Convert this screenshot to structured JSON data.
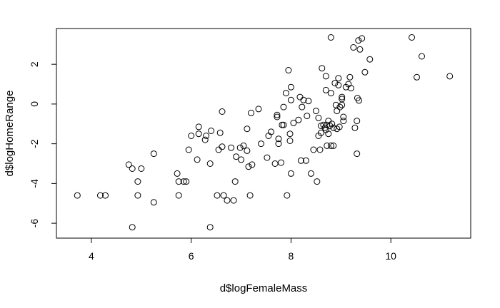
{
  "chart_data": {
    "type": "scatter",
    "title": "",
    "xlabel": "d$logFemaleMass",
    "ylabel": "d$logHomeRange",
    "xlim": [
      3.3,
      11.6
    ],
    "ylim": [
      -6.75,
      3.8
    ],
    "xticks": [
      4,
      6,
      8,
      10
    ],
    "yticks": [
      -6,
      -4,
      -2,
      0,
      2
    ],
    "x_tick_labels": [
      "4",
      "6",
      "8",
      "10"
    ],
    "y_tick_labels": [
      "-6",
      "-4",
      "-2",
      "0",
      "2"
    ],
    "grid": false,
    "legend": "none",
    "points": [
      {
        "x": 3.72,
        "y": -4.6
      },
      {
        "x": 4.18,
        "y": -4.6
      },
      {
        "x": 4.28,
        "y": -4.6
      },
      {
        "x": 4.75,
        "y": -3.05
      },
      {
        "x": 4.82,
        "y": -3.25
      },
      {
        "x": 4.82,
        "y": -6.2
      },
      {
        "x": 4.93,
        "y": -3.9
      },
      {
        "x": 4.93,
        "y": -4.6
      },
      {
        "x": 5.0,
        "y": -3.25
      },
      {
        "x": 5.25,
        "y": -2.5
      },
      {
        "x": 5.25,
        "y": -4.95
      },
      {
        "x": 5.72,
        "y": -3.5
      },
      {
        "x": 5.75,
        "y": -3.9
      },
      {
        "x": 5.75,
        "y": -4.6
      },
      {
        "x": 5.85,
        "y": -3.9
      },
      {
        "x": 5.9,
        "y": -3.9
      },
      {
        "x": 5.95,
        "y": -2.3
      },
      {
        "x": 6.0,
        "y": -1.6
      },
      {
        "x": 6.12,
        "y": -2.8
      },
      {
        "x": 6.15,
        "y": -1.5
      },
      {
        "x": 6.15,
        "y": -1.15
      },
      {
        "x": 6.28,
        "y": -1.8
      },
      {
        "x": 6.3,
        "y": -1.6
      },
      {
        "x": 6.38,
        "y": -3.0
      },
      {
        "x": 6.4,
        "y": -1.35
      },
      {
        "x": 6.38,
        "y": -6.2
      },
      {
        "x": 6.52,
        "y": -4.6
      },
      {
        "x": 6.55,
        "y": -2.3
      },
      {
        "x": 6.58,
        "y": -1.45
      },
      {
        "x": 6.62,
        "y": -0.38
      },
      {
        "x": 6.62,
        "y": -2.15
      },
      {
        "x": 6.65,
        "y": -4.6
      },
      {
        "x": 6.72,
        "y": -4.85
      },
      {
        "x": 6.8,
        "y": -2.2
      },
      {
        "x": 6.85,
        "y": -4.85
      },
      {
        "x": 6.88,
        "y": -3.9
      },
      {
        "x": 6.9,
        "y": -2.65
      },
      {
        "x": 6.98,
        "y": -2.2
      },
      {
        "x": 7.0,
        "y": -2.8
      },
      {
        "x": 7.05,
        "y": -2.1
      },
      {
        "x": 7.12,
        "y": -1.25
      },
      {
        "x": 7.12,
        "y": -2.35
      },
      {
        "x": 7.15,
        "y": -3.15
      },
      {
        "x": 7.18,
        "y": -4.6
      },
      {
        "x": 7.2,
        "y": -0.45
      },
      {
        "x": 7.22,
        "y": -3.05
      },
      {
        "x": 7.35,
        "y": -0.25
      },
      {
        "x": 7.4,
        "y": -2.0
      },
      {
        "x": 7.52,
        "y": -2.7
      },
      {
        "x": 7.55,
        "y": -1.6
      },
      {
        "x": 7.6,
        "y": -1.4
      },
      {
        "x": 7.68,
        "y": -3.0
      },
      {
        "x": 7.72,
        "y": -0.55
      },
      {
        "x": 7.72,
        "y": -0.65
      },
      {
        "x": 7.75,
        "y": -1.75
      },
      {
        "x": 7.75,
        "y": -2.0
      },
      {
        "x": 7.8,
        "y": -2.95
      },
      {
        "x": 7.82,
        "y": -1.05
      },
      {
        "x": 7.85,
        "y": -1.05
      },
      {
        "x": 7.85,
        "y": -0.15
      },
      {
        "x": 7.9,
        "y": 0.55
      },
      {
        "x": 7.92,
        "y": -4.6
      },
      {
        "x": 7.95,
        "y": 1.7
      },
      {
        "x": 7.98,
        "y": -1.5
      },
      {
        "x": 7.98,
        "y": -1.85
      },
      {
        "x": 8.0,
        "y": 0.2
      },
      {
        "x": 8.0,
        "y": 0.85
      },
      {
        "x": 8.0,
        "y": -3.5
      },
      {
        "x": 8.05,
        "y": -0.95
      },
      {
        "x": 8.15,
        "y": -0.8
      },
      {
        "x": 8.18,
        "y": 0.35
      },
      {
        "x": 8.2,
        "y": -2.85
      },
      {
        "x": 8.22,
        "y": -0.15
      },
      {
        "x": 8.25,
        "y": 0.2
      },
      {
        "x": 8.3,
        "y": -2.85
      },
      {
        "x": 8.32,
        "y": -0.6
      },
      {
        "x": 8.35,
        "y": 0.15
      },
      {
        "x": 8.4,
        "y": -3.5
      },
      {
        "x": 8.45,
        "y": -2.3
      },
      {
        "x": 8.5,
        "y": -0.35
      },
      {
        "x": 8.52,
        "y": -3.9
      },
      {
        "x": 8.55,
        "y": -0.7
      },
      {
        "x": 8.55,
        "y": -1.6
      },
      {
        "x": 8.58,
        "y": -2.3
      },
      {
        "x": 8.6,
        "y": -1.1
      },
      {
        "x": 8.6,
        "y": -1.45
      },
      {
        "x": 8.62,
        "y": 1.8
      },
      {
        "x": 8.65,
        "y": -1.05
      },
      {
        "x": 8.68,
        "y": -1.2
      },
      {
        "x": 8.7,
        "y": 1.4
      },
      {
        "x": 8.7,
        "y": 0.7
      },
      {
        "x": 8.7,
        "y": -1.3
      },
      {
        "x": 8.72,
        "y": -1.05
      },
      {
        "x": 8.72,
        "y": -2.1
      },
      {
        "x": 8.75,
        "y": -0.85
      },
      {
        "x": 8.75,
        "y": -1.5
      },
      {
        "x": 8.78,
        "y": -1.1
      },
      {
        "x": 8.8,
        "y": -2.1
      },
      {
        "x": 8.8,
        "y": 0.55
      },
      {
        "x": 8.8,
        "y": 3.35
      },
      {
        "x": 8.82,
        "y": -1.0
      },
      {
        "x": 8.85,
        "y": -1.2
      },
      {
        "x": 8.85,
        "y": -2.1
      },
      {
        "x": 8.88,
        "y": 1.05
      },
      {
        "x": 8.9,
        "y": -0.05
      },
      {
        "x": 8.92,
        "y": -0.35
      },
      {
        "x": 8.92,
        "y": -1.25
      },
      {
        "x": 8.95,
        "y": 1.3
      },
      {
        "x": 8.95,
        "y": 0.95
      },
      {
        "x": 8.97,
        "y": -1.15
      },
      {
        "x": 8.98,
        "y": -0.15
      },
      {
        "x": 9.02,
        "y": 0.35
      },
      {
        "x": 9.02,
        "y": 0.25
      },
      {
        "x": 9.02,
        "y": -0.05
      },
      {
        "x": 9.05,
        "y": -0.65
      },
      {
        "x": 9.05,
        "y": -0.85
      },
      {
        "x": 9.1,
        "y": 0.85
      },
      {
        "x": 9.15,
        "y": 1.0
      },
      {
        "x": 9.18,
        "y": 1.35
      },
      {
        "x": 9.2,
        "y": 0.8
      },
      {
        "x": 9.25,
        "y": 2.85
      },
      {
        "x": 9.28,
        "y": -1.2
      },
      {
        "x": 9.32,
        "y": -2.5
      },
      {
        "x": 9.32,
        "y": -0.85
      },
      {
        "x": 9.33,
        "y": 0.3
      },
      {
        "x": 9.35,
        "y": 3.2
      },
      {
        "x": 9.36,
        "y": 0.18
      },
      {
        "x": 9.38,
        "y": 2.75
      },
      {
        "x": 9.42,
        "y": 3.3
      },
      {
        "x": 9.48,
        "y": 1.6
      },
      {
        "x": 9.58,
        "y": 2.25
      },
      {
        "x": 10.42,
        "y": 3.35
      },
      {
        "x": 10.52,
        "y": 1.35
      },
      {
        "x": 10.62,
        "y": 2.4
      },
      {
        "x": 11.18,
        "y": 1.4
      }
    ]
  }
}
